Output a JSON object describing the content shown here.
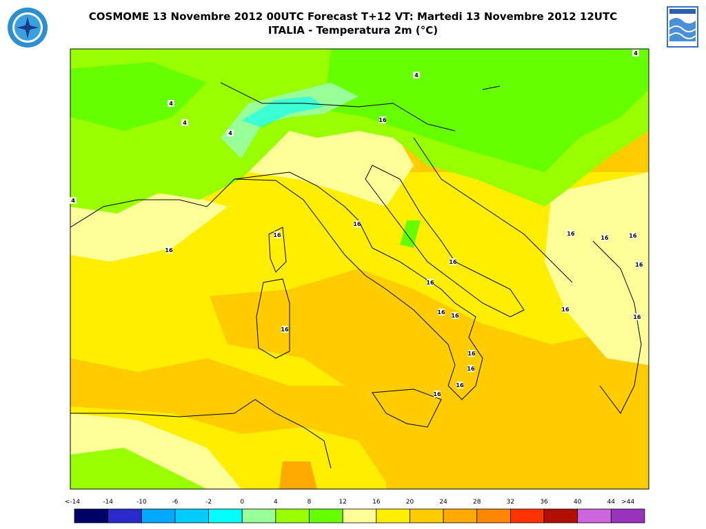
{
  "header": {
    "title_line1": "COSMOME 13 Novembre 2012 00UTC Forecast T+12 VT: Martedi 13 Novembre 2012 12UTC",
    "title_line2": "ITALIA - Temperatura 2m (°C)"
  },
  "map": {
    "contour_labels": [
      "4",
      "4",
      "4",
      "4",
      "4",
      "4",
      "16",
      "16",
      "16",
      "16",
      "16",
      "16",
      "16",
      "16",
      "16",
      "16",
      "16",
      "16",
      "16",
      "16",
      "16",
      "16",
      "16",
      "16",
      "16"
    ]
  },
  "colorbar": {
    "labels": [
      "<-14",
      "-14",
      "-10",
      "-6",
      "-2",
      "0",
      "4",
      "8",
      "12",
      "16",
      "20",
      "24",
      "28",
      "32",
      "36",
      "40",
      "44",
      ">44"
    ],
    "colors": [
      "#000066",
      "#2a2acc",
      "#00a8ff",
      "#00ccff",
      "#00ffff",
      "#99ff99",
      "#99ff00",
      "#66ff00",
      "#ffff99",
      "#ffee00",
      "#ffcc00",
      "#ffaa00",
      "#ff8800",
      "#ff3300",
      "#b30f00",
      "#cc66dd",
      "#9933bb"
    ]
  }
}
